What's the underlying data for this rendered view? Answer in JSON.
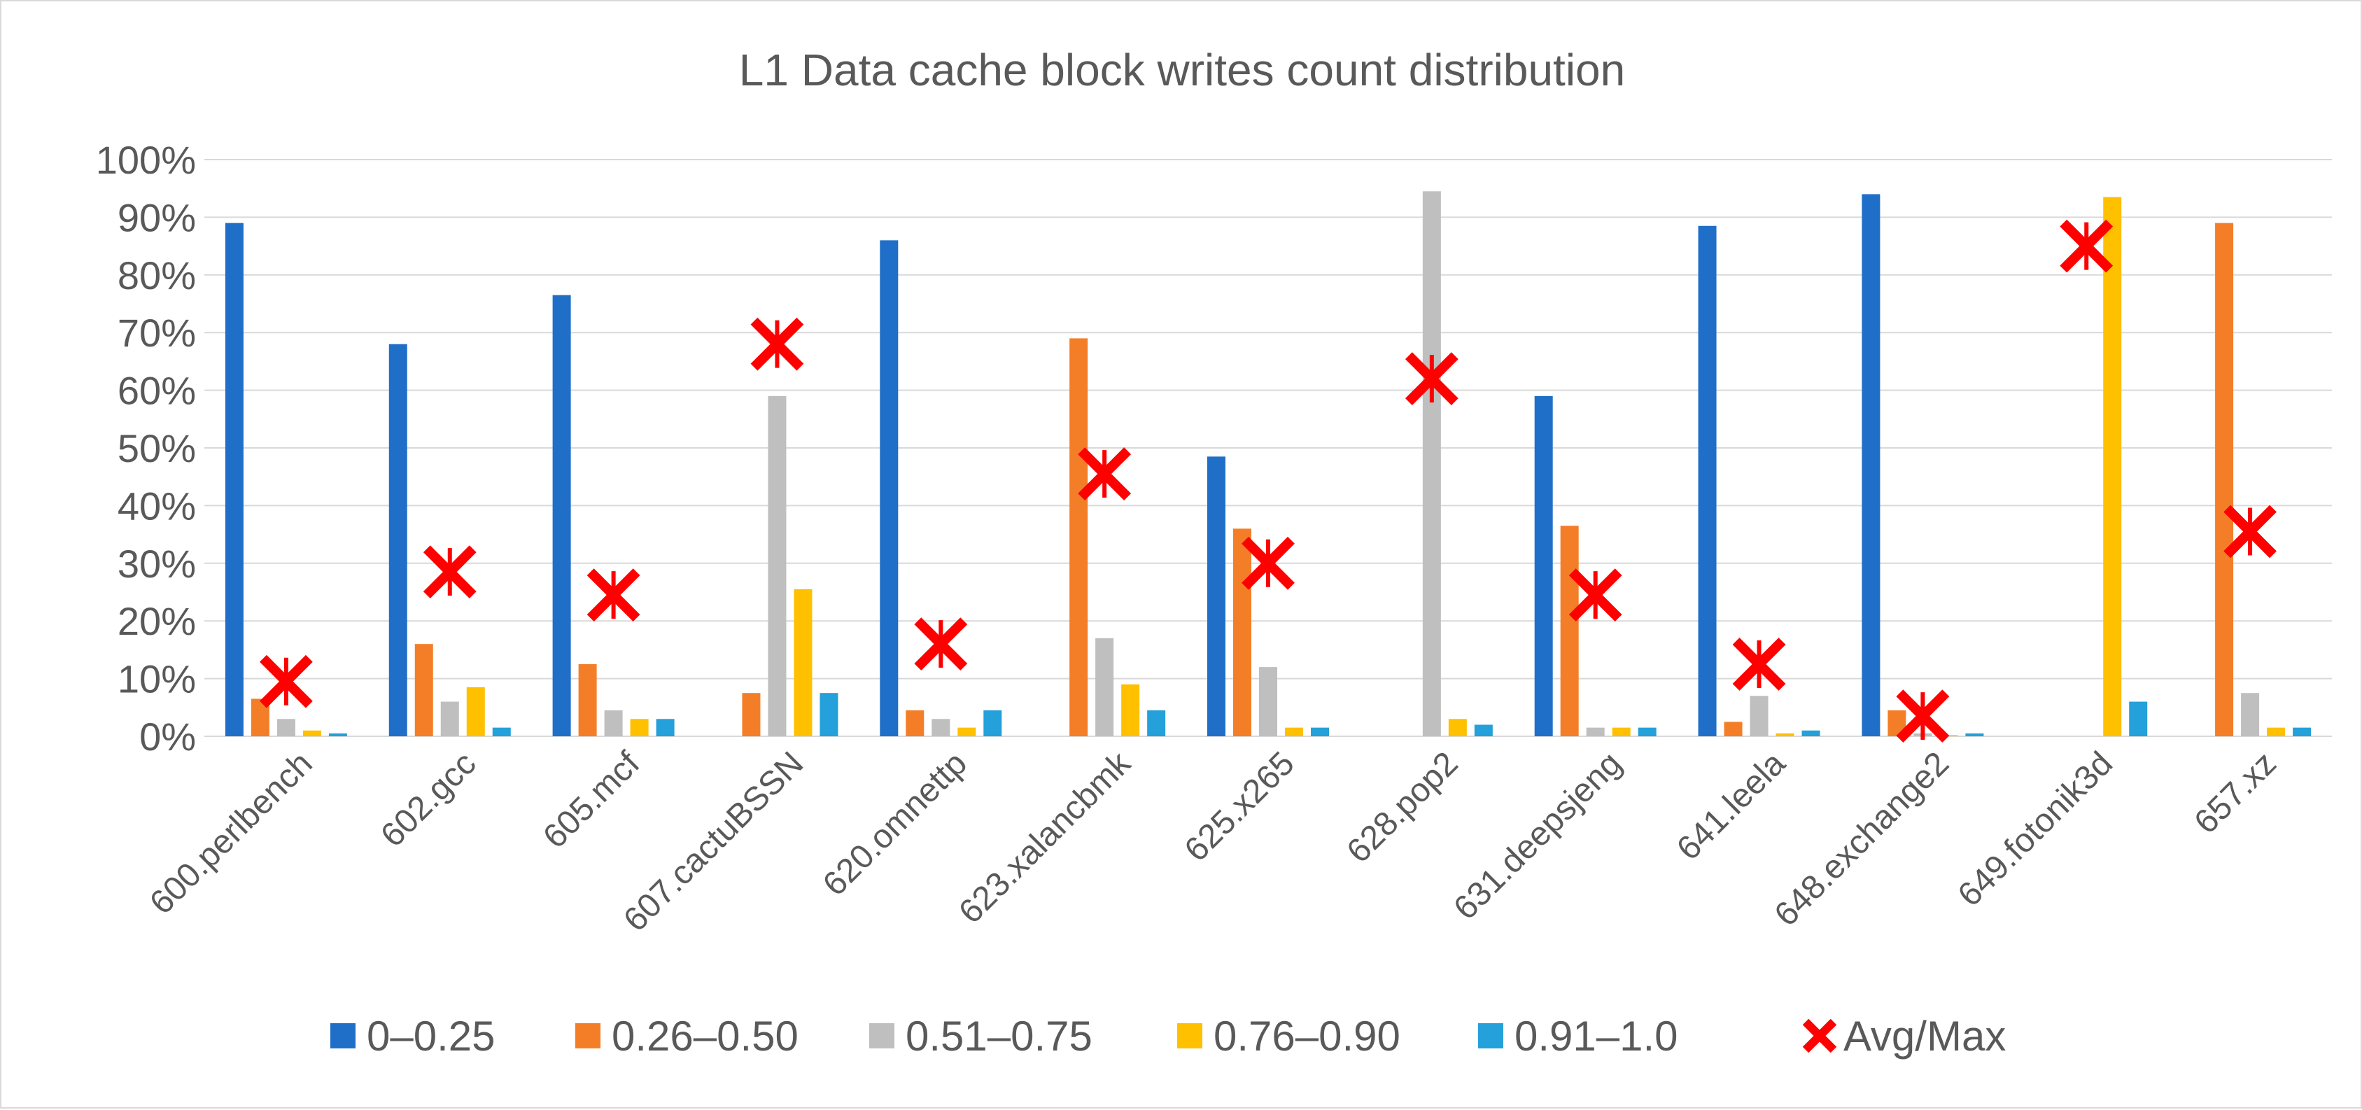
{
  "chart_data": {
    "type": "bar",
    "title": "L1 Data cache block writes count distribution",
    "xlabel": "",
    "ylabel": "",
    "ylim": [
      0,
      100
    ],
    "yticks": [
      "0%",
      "10%",
      "20%",
      "30%",
      "40%",
      "50%",
      "60%",
      "70%",
      "80%",
      "90%",
      "100%"
    ],
    "grid": true,
    "legend_position": "bottom",
    "categories": [
      "600.perlbench",
      "602.gcc",
      "605.mcf",
      "607.cactuBSSN",
      "620.omnettp",
      "623.xalancbmk",
      "625.x265",
      "628.pop2",
      "631.deepsjeng",
      "641.leela",
      "648.exchange2",
      "649.fotonik3d",
      "657.xz"
    ],
    "series": [
      {
        "name": "0–0.25",
        "color": "#1f6fc9",
        "values": [
          89,
          68,
          76.5,
          0,
          86,
          0,
          48.5,
          0,
          59,
          88.5,
          94,
          0,
          0
        ]
      },
      {
        "name": "0.26–0.50",
        "color": "#f47e27",
        "values": [
          6.5,
          16,
          12.5,
          7.5,
          4.5,
          69,
          36,
          0,
          36.5,
          2.5,
          4.5,
          0,
          89
        ]
      },
      {
        "name": "0.51–0.75",
        "color": "#bfbfbf",
        "values": [
          3,
          6,
          4.5,
          59,
          3,
          17,
          12,
          94.5,
          1.5,
          7,
          0.5,
          0,
          7.5
        ]
      },
      {
        "name": "0.76–0.90",
        "color": "#ffc000",
        "values": [
          1,
          8.5,
          3,
          25.5,
          1.5,
          9,
          1.5,
          3,
          1.5,
          0.5,
          0.2,
          93.5,
          1.5
        ]
      },
      {
        "name": "0.91–1.0",
        "color": "#24a0da",
        "values": [
          0.5,
          1.5,
          3,
          7.5,
          4.5,
          4.5,
          1.5,
          2,
          1.5,
          1,
          0.5,
          6,
          1.5
        ]
      }
    ],
    "markers": {
      "name": "Avg/Max",
      "color": "#ff0000",
      "values": [
        9.5,
        28.5,
        24.5,
        68,
        16,
        45.5,
        30,
        62,
        24.5,
        12.5,
        3.5,
        85,
        35.5
      ]
    }
  }
}
